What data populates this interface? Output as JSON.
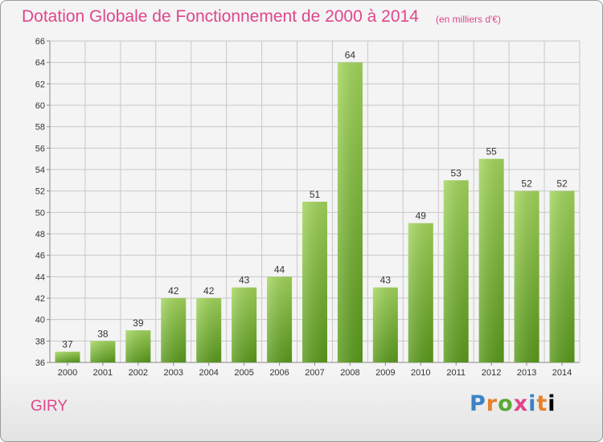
{
  "header": {
    "title": "Dotation Globale de Fonctionnement de 2000 à 2014",
    "subtitle": "(en milliers d'€)"
  },
  "commune": "GIRY",
  "brand": {
    "letters": [
      "P",
      "r",
      "o",
      "x",
      "i",
      "t",
      "i"
    ]
  },
  "colors": {
    "title": "#e0468c",
    "bar_light": "#a3d65c",
    "bar_dark": "#5a9a1c",
    "grid": "#c8c8c8",
    "axis_text": "#333333"
  },
  "chart_data": {
    "type": "bar",
    "title": "Dotation Globale de Fonctionnement de 2000 à 2014",
    "subtitle": "(en milliers d'€)",
    "categories": [
      "2000",
      "2001",
      "2002",
      "2003",
      "2004",
      "2005",
      "2006",
      "2007",
      "2008",
      "2009",
      "2010",
      "2011",
      "2012",
      "2013",
      "2014"
    ],
    "values": [
      37,
      38,
      39,
      42,
      42,
      43,
      44,
      51,
      64,
      43,
      49,
      53,
      55,
      52,
      52
    ],
    "ylim": [
      36,
      66
    ],
    "yticks": [
      36,
      38,
      40,
      42,
      44,
      46,
      48,
      50,
      52,
      54,
      56,
      58,
      60,
      62,
      64,
      66
    ],
    "grid": true,
    "legend": "none"
  }
}
